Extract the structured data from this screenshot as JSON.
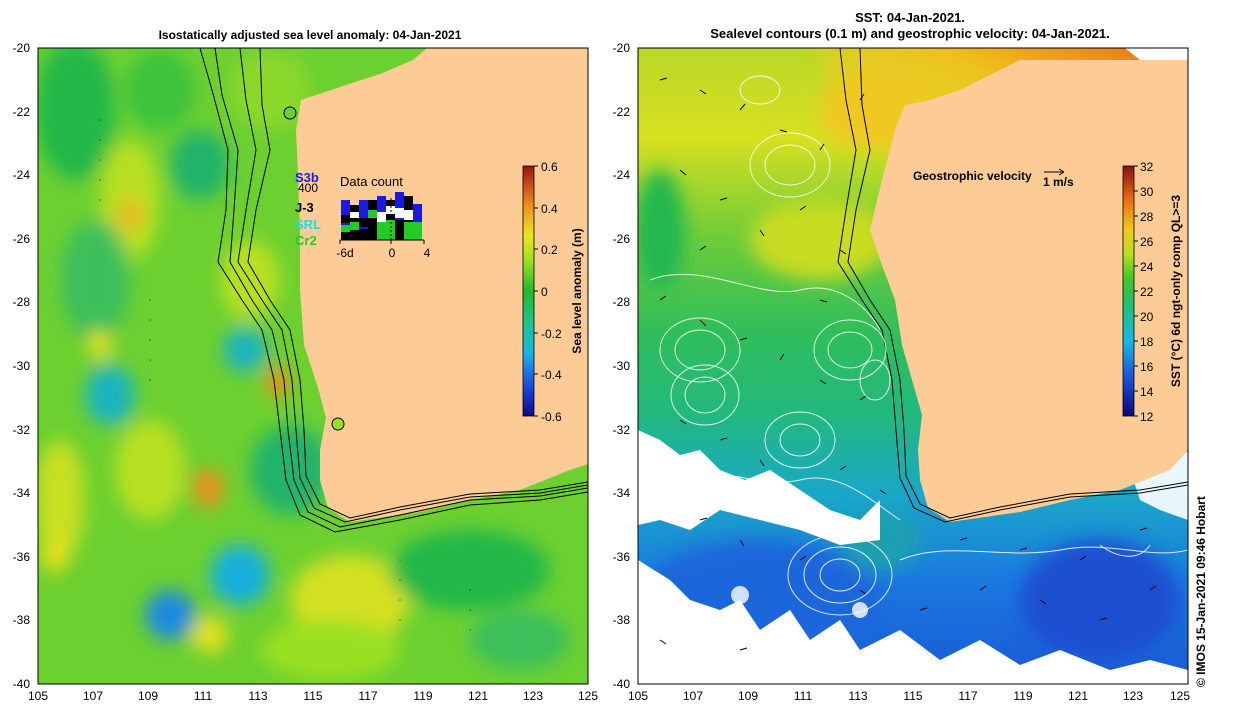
{
  "left_panel": {
    "title": "Isostatically adjusted sea level anomaly: 04-Jan-2021",
    "x_ticks": [
      "105",
      "107",
      "109",
      "111",
      "113",
      "115",
      "117",
      "119",
      "121",
      "123",
      "125"
    ],
    "y_ticks": [
      "-20",
      "-22",
      "-24",
      "-26",
      "-28",
      "-30",
      "-32",
      "-34",
      "-36",
      "-38",
      "-40"
    ],
    "colorbar": {
      "label": "Sea level anomaly (m)",
      "ticks": [
        "0.6",
        "0.4",
        "0.2",
        "0",
        "-0.2",
        "-0.4",
        "-0.6"
      ]
    },
    "inset": {
      "title": "Data count",
      "missions": [
        "S3b",
        "J-3",
        "SRL",
        "Cr2"
      ],
      "mission_colors": [
        "#1a1ae0",
        "#000000",
        "#22dddd",
        "#22cc22"
      ],
      "count_label": "400",
      "x_labels": [
        "-6d",
        "0",
        "4"
      ]
    }
  },
  "right_panel": {
    "title_line1": "SST: 04-Jan-2021.",
    "title_line2": "Sealevel contours (0.1 m) and geostrophic velocity: 04-Jan-2021.",
    "x_ticks": [
      "105",
      "107",
      "109",
      "111",
      "113",
      "115",
      "117",
      "119",
      "121",
      "123",
      "125"
    ],
    "y_ticks": [
      "-20",
      "-22",
      "-24",
      "-26",
      "-28",
      "-30",
      "-32",
      "-34",
      "-36",
      "-38",
      "-40"
    ],
    "colorbar": {
      "label": "SST (°C) 6d ngt-only comp QL>=3",
      "ticks": [
        "32",
        "30",
        "28",
        "26",
        "24",
        "22",
        "20",
        "18",
        "16",
        "14",
        "12"
      ]
    },
    "velocity_legend": {
      "label": "Geostrophic velocity",
      "scale": "1 m/s"
    }
  },
  "credit": "© IMOS 15-Jan-2021 09:46 Hobart"
}
